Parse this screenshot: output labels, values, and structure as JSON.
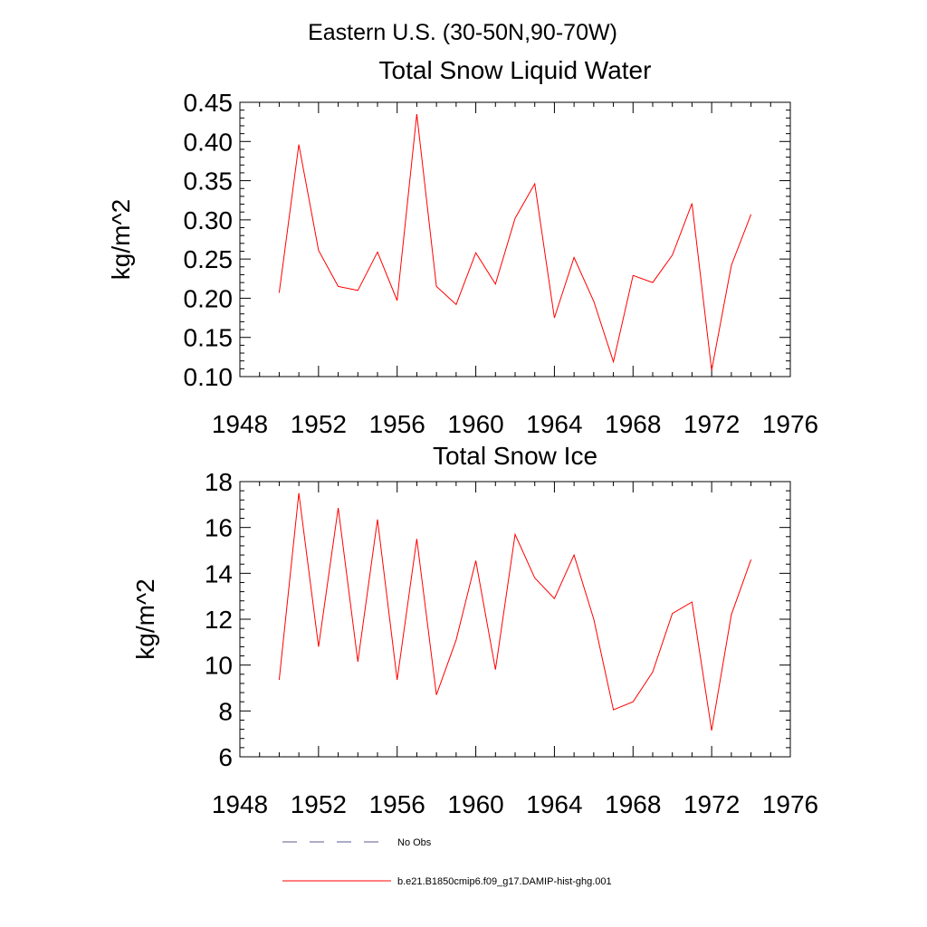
{
  "figure": {
    "suptitle": "Eastern U.S. (30-50N,90-70W)",
    "legend": [
      {
        "label": "No Obs",
        "color": "#5a5a8c",
        "dash": "dashed"
      },
      {
        "label": "b.e21.B1850cmip6.f09_g17.DAMIP-hist-ghg.001",
        "color": "#ff0000",
        "dash": "solid"
      }
    ]
  },
  "chart_data": [
    {
      "type": "line",
      "title": "Total Snow Liquid Water",
      "xlabel": "",
      "ylabel": "kg/m^2",
      "xlim": [
        1948,
        1976
      ],
      "ylim": [
        0.1,
        0.45
      ],
      "xticks": [
        "1948",
        "1952",
        "1956",
        "1960",
        "1964",
        "1968",
        "1972",
        "1976"
      ],
      "yticks": [
        "0.10",
        "0.15",
        "0.20",
        "0.25",
        "0.30",
        "0.35",
        "0.40",
        "0.45"
      ],
      "grid": false,
      "series": [
        {
          "name": "b.e21.B1850cmip6.f09_g17.DAMIP-hist-ghg.001",
          "color": "#ff0000",
          "x": [
            1950,
            1951,
            1952,
            1953,
            1954,
            1955,
            1956,
            1957,
            1958,
            1959,
            1960,
            1961,
            1962,
            1963,
            1964,
            1965,
            1966,
            1967,
            1968,
            1969,
            1970,
            1971,
            1972,
            1973,
            1974
          ],
          "y": [
            0.207,
            0.396,
            0.261,
            0.215,
            0.21,
            0.259,
            0.197,
            0.435,
            0.215,
            0.192,
            0.258,
            0.218,
            0.302,
            0.346,
            0.175,
            0.252,
            0.196,
            0.119,
            0.229,
            0.22,
            0.255,
            0.321,
            0.108,
            0.242,
            0.307
          ]
        }
      ]
    },
    {
      "type": "line",
      "title": "Total Snow Ice",
      "xlabel": "",
      "ylabel": "kg/m^2",
      "xlim": [
        1948,
        1976
      ],
      "ylim": [
        6,
        18
      ],
      "xticks": [
        "1948",
        "1952",
        "1956",
        "1960",
        "1964",
        "1968",
        "1972",
        "1976"
      ],
      "yticks": [
        "6",
        "8",
        "10",
        "12",
        "14",
        "16",
        "18"
      ],
      "grid": false,
      "series": [
        {
          "name": "b.e21.B1850cmip6.f09_g17.DAMIP-hist-ghg.001",
          "color": "#ff0000",
          "x": [
            1950,
            1951,
            1952,
            1953,
            1954,
            1955,
            1956,
            1957,
            1958,
            1959,
            1960,
            1961,
            1962,
            1963,
            1964,
            1965,
            1966,
            1967,
            1968,
            1969,
            1970,
            1971,
            1972,
            1973,
            1974
          ],
          "y": [
            9.35,
            17.5,
            10.8,
            16.85,
            10.15,
            16.35,
            9.35,
            15.5,
            8.7,
            11.1,
            14.55,
            9.8,
            15.7,
            13.8,
            12.9,
            14.8,
            12.0,
            8.05,
            8.4,
            9.7,
            12.25,
            12.75,
            7.15,
            12.2,
            14.6
          ]
        }
      ]
    }
  ]
}
